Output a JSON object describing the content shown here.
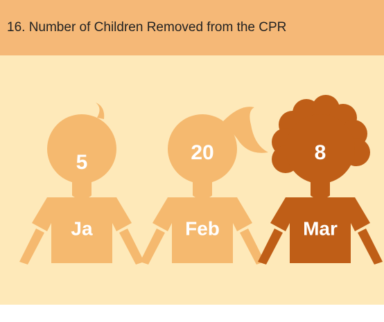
{
  "chart_data": {
    "type": "pictogram",
    "title": "16. Number of Children Removed from the CPR",
    "categories": [
      "Ja",
      "Feb",
      "Mar"
    ],
    "values": [
      5,
      20,
      8
    ],
    "colors": [
      "#f5b96f",
      "#f5b96f",
      "#bf5e17"
    ]
  }
}
